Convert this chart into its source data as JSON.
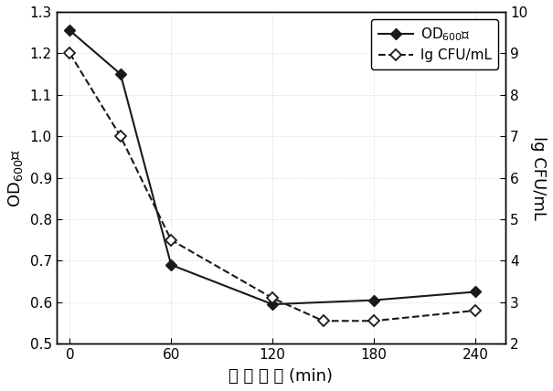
{
  "x_od": [
    0,
    30,
    60,
    120,
    180,
    240
  ],
  "y_od": [
    1.255,
    1.15,
    0.69,
    0.595,
    0.605,
    0.625
  ],
  "x_cfu": [
    0,
    30,
    60,
    120,
    150,
    180,
    240
  ],
  "y_cfu": [
    9.0,
    7.0,
    4.5,
    3.1,
    2.55,
    2.55,
    2.8
  ],
  "xlabel": "诱 导 时 间 (min)",
  "ylabel_left": "OD₆₀₀值",
  "ylabel_right": "lg CFU/mL",
  "legend_od_prefix": "OD",
  "legend_od_sub": "600",
  "legend_od_suffix": "值",
  "legend_cfu": "lg CFU/mL",
  "xlim": [
    -8,
    258
  ],
  "xticks": [
    0,
    60,
    120,
    180,
    240
  ],
  "ylim_left": [
    0.5,
    1.3
  ],
  "yticks_left": [
    0.5,
    0.6,
    0.7,
    0.8,
    0.9,
    1.0,
    1.1,
    1.2,
    1.3
  ],
  "ylim_right": [
    2,
    10
  ],
  "yticks_right": [
    2,
    3,
    4,
    5,
    6,
    7,
    8,
    9,
    10
  ],
  "line_color": "#1a1a1a",
  "bg_color": "#ffffff",
  "fig_width": 6.05,
  "fig_height": 4.28,
  "dpi": 100
}
